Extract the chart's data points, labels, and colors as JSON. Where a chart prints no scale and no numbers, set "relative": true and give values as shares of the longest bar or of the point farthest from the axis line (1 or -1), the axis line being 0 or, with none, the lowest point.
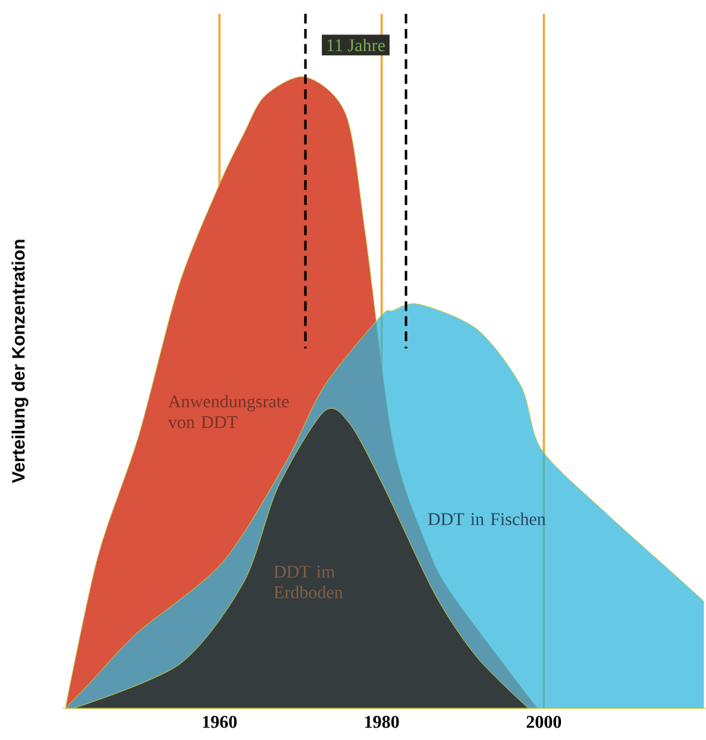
{
  "chart_data": {
    "type": "area",
    "relative": true,
    "ylabel": "Verteilung der Konzentration",
    "xlim": [
      1940.6,
      2020
    ],
    "xticks": [
      1960,
      1980,
      2000
    ],
    "grid": "x",
    "marker": "none",
    "series": [
      {
        "name": "Anwendungsrate von DDT",
        "color": "#d9533f",
        "x": [
          1941,
          1945,
          1950,
          1955,
          1960,
          1963,
          1965.6,
          1970.6,
          1975.6,
          1978,
          1980,
          1981.4,
          1985.5,
          1988.7,
          1991.8,
          1999.2
        ],
        "values": [
          0,
          0.24,
          0.43,
          0.67,
          0.83,
          0.91,
          0.97,
          1,
          0.94,
          0.75,
          null,
          0.42,
          0.26,
          0.18,
          null,
          0
        ]
      },
      {
        "name": "DDT in Fischen",
        "color": "#2ab4dc",
        "x": [
          1941,
          1944,
          1949.9,
          1960.3,
          1968.2,
          1972.9,
          1979.8,
          1981.4,
          1984.6,
          1991.8,
          1997.2,
          1999.7,
          2007.6,
          2015.4,
          2019.7
        ],
        "values": [
          0,
          0.04,
          0.12,
          0.23,
          0.39,
          0.51,
          0.62,
          0.63,
          0.64,
          0.6,
          0.51,
          0.41,
          0.31,
          0.22,
          0.17
        ]
      },
      {
        "name": "DDT im Erdboden",
        "color": "#2a2422",
        "x": [
          1942,
          1955.1,
          1963,
          1967.2,
          1972.9,
          1976.1,
          1980.3,
          1986.6,
          1991.8,
          1998.1
        ],
        "values": [
          0,
          0.07,
          0.2,
          0.35,
          0.47,
          0.45,
          0.35,
          0.18,
          0.08,
          0
        ]
      }
    ],
    "ref_lines": [
      {
        "axis": "x",
        "value": 1970.6,
        "color": "#000000",
        "line_style": "dashed"
      },
      {
        "axis": "x",
        "value": 1983,
        "color": "#000000",
        "line_style": "dashed"
      }
    ],
    "annotations": [
      "11 Jahre"
    ]
  }
}
